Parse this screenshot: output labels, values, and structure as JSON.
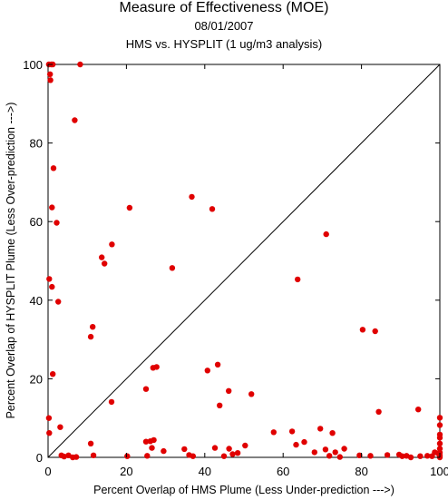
{
  "chart_data": {
    "type": "scatter",
    "title": "Measure of Effectiveness (MOE)",
    "subtitle": "08/01/2007",
    "subtitle2": "HMS vs. HYSPLIT  (1 ug/m3 analysis)",
    "xlabel": "Percent Overlap of HMS Plume (Less Under-prediction --->)",
    "ylabel": "Percent Overlap of HYSPLIT Plume (Less Over-prediction --->)",
    "xlim": [
      0,
      100
    ],
    "ylim": [
      0,
      100
    ],
    "xticks": [
      "0",
      "20",
      "40",
      "60",
      "80",
      "100"
    ],
    "yticks": [
      "0",
      "20",
      "40",
      "60",
      "80",
      "100"
    ],
    "grid": false,
    "diagonal_line": true,
    "point_color": "#e00000",
    "points": [
      [
        0.2,
        100
      ],
      [
        0.8,
        100
      ],
      [
        1.2,
        100
      ],
      [
        8.2,
        100
      ],
      [
        0.5,
        97.5
      ],
      [
        0.6,
        96
      ],
      [
        6.8,
        85.8
      ],
      [
        1.4,
        73.6
      ],
      [
        1,
        63.6
      ],
      [
        2.2,
        59.7
      ],
      [
        0.3,
        45.4
      ],
      [
        1,
        43.4
      ],
      [
        2.6,
        39.6
      ],
      [
        1.2,
        21.2
      ],
      [
        0.2,
        10
      ],
      [
        0.3,
        6.2
      ],
      [
        11.4,
        33.2
      ],
      [
        10.9,
        30.7
      ],
      [
        13.7,
        50.9
      ],
      [
        14.4,
        49.3
      ],
      [
        16.3,
        54.2
      ],
      [
        20.8,
        63.5
      ],
      [
        16.2,
        14.1
      ],
      [
        25,
        17.4
      ],
      [
        26.8,
        22.8
      ],
      [
        27.7,
        23
      ],
      [
        31.7,
        48.2
      ],
      [
        36.7,
        66.3
      ],
      [
        41.9,
        63.2
      ],
      [
        40.7,
        22.1
      ],
      [
        43.3,
        23.6
      ],
      [
        43.8,
        13.2
      ],
      [
        46.1,
        16.9
      ],
      [
        51.9,
        16.1
      ],
      [
        63.7,
        45.3
      ],
      [
        71,
        56.8
      ],
      [
        80.3,
        32.5
      ],
      [
        83.5,
        32.1
      ],
      [
        84.4,
        11.6
      ],
      [
        94.5,
        12.2
      ],
      [
        100,
        10.1
      ],
      [
        100,
        8.2
      ],
      [
        100,
        5.8
      ],
      [
        100,
        5
      ],
      [
        100,
        3.5
      ],
      [
        100,
        2.2
      ],
      [
        100,
        1.2
      ],
      [
        100,
        0.5
      ],
      [
        100,
        0
      ],
      [
        3.1,
        7.7
      ],
      [
        3.4,
        0.5
      ],
      [
        4.1,
        0.2
      ],
      [
        5.2,
        0.5
      ],
      [
        6.3,
        0
      ],
      [
        7.2,
        0.1
      ],
      [
        10.9,
        3.5
      ],
      [
        11.6,
        0.5
      ],
      [
        20.2,
        0.3
      ],
      [
        25,
        4
      ],
      [
        25.3,
        0.4
      ],
      [
        26.1,
        4.1
      ],
      [
        26.5,
        2.4
      ],
      [
        27,
        4.4
      ],
      [
        29.5,
        1.6
      ],
      [
        34.8,
        2.1
      ],
      [
        36,
        0.6
      ],
      [
        37,
        0.3
      ],
      [
        42.6,
        2.4
      ],
      [
        44.9,
        0.3
      ],
      [
        46.2,
        2.2
      ],
      [
        47.1,
        0.8
      ],
      [
        48.4,
        1.1
      ],
      [
        50.3,
        3
      ],
      [
        57.6,
        6.4
      ],
      [
        62.3,
        6.6
      ],
      [
        63.3,
        3.2
      ],
      [
        65.4,
        3.9
      ],
      [
        68,
        1.3
      ],
      [
        69.5,
        7.3
      ],
      [
        70.8,
        2
      ],
      [
        71.8,
        0.4
      ],
      [
        72.6,
        6.2
      ],
      [
        73.3,
        1.3
      ],
      [
        74.5,
        0.1
      ],
      [
        75.6,
        2.2
      ],
      [
        79.5,
        0.5
      ],
      [
        82.3,
        0.4
      ],
      [
        86.6,
        0.6
      ],
      [
        89.6,
        0.7
      ],
      [
        90.4,
        0.3
      ],
      [
        91.5,
        0.4
      ],
      [
        92.6,
        0
      ],
      [
        95,
        0.3
      ],
      [
        96.8,
        0.4
      ],
      [
        98,
        0.3
      ],
      [
        98.7,
        1.3
      ],
      [
        99.6,
        1
      ]
    ]
  }
}
